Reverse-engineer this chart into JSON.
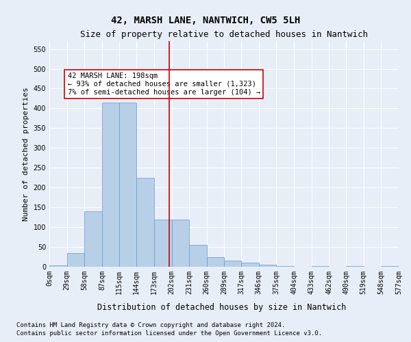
{
  "title": "42, MARSH LANE, NANTWICH, CW5 5LH",
  "subtitle": "Size of property relative to detached houses in Nantwich",
  "xlabel": "Distribution of detached houses by size in Nantwich",
  "ylabel": "Number of detached properties",
  "property_size": 198,
  "bar_values": [
    3,
    35,
    140,
    415,
    415,
    225,
    120,
    120,
    55,
    25,
    15,
    10,
    5,
    2,
    0,
    2,
    0,
    2,
    0,
    2
  ],
  "bin_edges": [
    0,
    29,
    58,
    87,
    115,
    144,
    173,
    202,
    231,
    260,
    289,
    317,
    346,
    375,
    404,
    433,
    462,
    490,
    519,
    548,
    577
  ],
  "bar_color": "#b8cfe8",
  "bar_edgecolor": "#6699cc",
  "vline_color": "#cc0000",
  "annotation_text": "42 MARSH LANE: 198sqm\n← 93% of detached houses are smaller (1,323)\n7% of semi-detached houses are larger (104) →",
  "annotation_bbox_edgecolor": "#cc0000",
  "annotation_bbox_facecolor": "#ffffff",
  "ylim": [
    0,
    570
  ],
  "yticks": [
    0,
    50,
    100,
    150,
    200,
    250,
    300,
    350,
    400,
    450,
    500,
    550
  ],
  "background_color": "#e8eef8",
  "footer_line1": "Contains HM Land Registry data © Crown copyright and database right 2024.",
  "footer_line2": "Contains public sector information licensed under the Open Government Licence v3.0.",
  "title_fontsize": 10,
  "subtitle_fontsize": 9,
  "xlabel_fontsize": 8.5,
  "ylabel_fontsize": 8,
  "tick_fontsize": 7,
  "annotation_fontsize": 7.5,
  "footer_fontsize": 6.5
}
